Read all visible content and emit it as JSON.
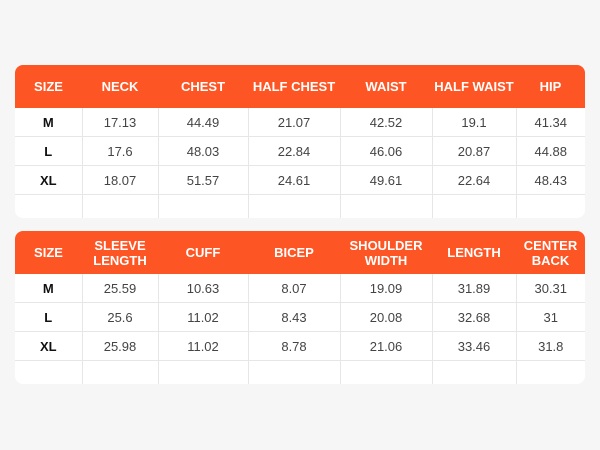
{
  "table1": {
    "headers": [
      "SIZE",
      "NECK",
      "CHEST",
      "HALF CHEST",
      "WAIST",
      "HALF WAIST",
      "HIP"
    ],
    "rows": [
      [
        "M",
        "17.13",
        "44.49",
        "21.07",
        "42.52",
        "19.1",
        "41.34"
      ],
      [
        "L",
        "17.6",
        "48.03",
        "22.84",
        "46.06",
        "20.87",
        "44.88"
      ],
      [
        "XL",
        "18.07",
        "51.57",
        "24.61",
        "49.61",
        "22.64",
        "48.43"
      ]
    ]
  },
  "table2": {
    "headers": [
      "SIZE",
      "SLEEVE LENGTH",
      "CUFF",
      "BICEP",
      "SHOULDER WIDTH",
      "LENGTH",
      "CENTER BACK"
    ],
    "rows": [
      [
        "M",
        "25.59",
        "10.63",
        "8.07",
        "19.09",
        "31.89",
        "30.31"
      ],
      [
        "L",
        "25.6",
        "11.02",
        "8.43",
        "20.08",
        "32.68",
        "31"
      ],
      [
        "XL",
        "25.98",
        "11.02",
        "8.78",
        "21.06",
        "33.46",
        "31.8"
      ]
    ]
  },
  "colors": {
    "header_bg": "#fd5523",
    "header_text": "#ffffff"
  }
}
